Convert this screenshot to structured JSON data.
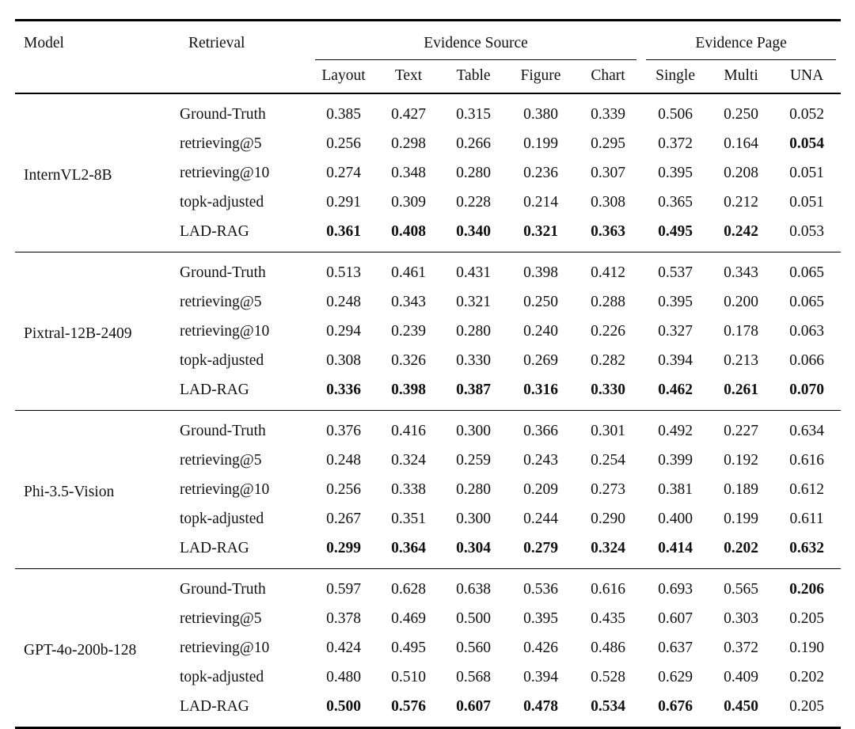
{
  "table": {
    "header": {
      "model_label": "Model",
      "retrieval_label": "Retrieval",
      "group_source_label": "Evidence Source",
      "group_page_label": "Evidence Page",
      "subcolumns": [
        "Layout",
        "Text",
        "Table",
        "Figure",
        "Chart",
        "Single",
        "Multi",
        "UNA"
      ]
    },
    "groups": [
      {
        "model": "InternVL2-8B",
        "rows": [
          {
            "retrieval": "Ground-Truth",
            "values": [
              "0.385",
              "0.427",
              "0.315",
              "0.380",
              "0.339",
              "0.506",
              "0.250",
              "0.052"
            ],
            "bold": [
              false,
              false,
              false,
              false,
              false,
              false,
              false,
              false
            ]
          },
          {
            "retrieval": "retrieving@5",
            "values": [
              "0.256",
              "0.298",
              "0.266",
              "0.199",
              "0.295",
              "0.372",
              "0.164",
              "0.054"
            ],
            "bold": [
              false,
              false,
              false,
              false,
              false,
              false,
              false,
              true
            ]
          },
          {
            "retrieval": "retrieving@10",
            "values": [
              "0.274",
              "0.348",
              "0.280",
              "0.236",
              "0.307",
              "0.395",
              "0.208",
              "0.051"
            ],
            "bold": [
              false,
              false,
              false,
              false,
              false,
              false,
              false,
              false
            ]
          },
          {
            "retrieval": "topk-adjusted",
            "values": [
              "0.291",
              "0.309",
              "0.228",
              "0.214",
              "0.308",
              "0.365",
              "0.212",
              "0.051"
            ],
            "bold": [
              false,
              false,
              false,
              false,
              false,
              false,
              false,
              false
            ]
          },
          {
            "retrieval": "LAD-RAG",
            "values": [
              "0.361",
              "0.408",
              "0.340",
              "0.321",
              "0.363",
              "0.495",
              "0.242",
              "0.053"
            ],
            "bold": [
              true,
              true,
              true,
              true,
              true,
              true,
              true,
              false
            ]
          }
        ]
      },
      {
        "model": "Pixtral-12B-2409",
        "rows": [
          {
            "retrieval": "Ground-Truth",
            "values": [
              "0.513",
              "0.461",
              "0.431",
              "0.398",
              "0.412",
              "0.537",
              "0.343",
              "0.065"
            ],
            "bold": [
              false,
              false,
              false,
              false,
              false,
              false,
              false,
              false
            ]
          },
          {
            "retrieval": "retrieving@5",
            "values": [
              "0.248",
              "0.343",
              "0.321",
              "0.250",
              "0.288",
              "0.395",
              "0.200",
              "0.065"
            ],
            "bold": [
              false,
              false,
              false,
              false,
              false,
              false,
              false,
              false
            ]
          },
          {
            "retrieval": "retrieving@10",
            "values": [
              "0.294",
              "0.239",
              "0.280",
              "0.240",
              "0.226",
              "0.327",
              "0.178",
              "0.063"
            ],
            "bold": [
              false,
              false,
              false,
              false,
              false,
              false,
              false,
              false
            ]
          },
          {
            "retrieval": "topk-adjusted",
            "values": [
              "0.308",
              "0.326",
              "0.330",
              "0.269",
              "0.282",
              "0.394",
              "0.213",
              "0.066"
            ],
            "bold": [
              false,
              false,
              false,
              false,
              false,
              false,
              false,
              false
            ]
          },
          {
            "retrieval": "LAD-RAG",
            "values": [
              "0.336",
              "0.398",
              "0.387",
              "0.316",
              "0.330",
              "0.462",
              "0.261",
              "0.070"
            ],
            "bold": [
              true,
              true,
              true,
              true,
              true,
              true,
              true,
              true
            ]
          }
        ]
      },
      {
        "model": "Phi-3.5-Vision",
        "rows": [
          {
            "retrieval": "Ground-Truth",
            "values": [
              "0.376",
              "0.416",
              "0.300",
              "0.366",
              "0.301",
              "0.492",
              "0.227",
              "0.634"
            ],
            "bold": [
              false,
              false,
              false,
              false,
              false,
              false,
              false,
              false
            ]
          },
          {
            "retrieval": "retrieving@5",
            "values": [
              "0.248",
              "0.324",
              "0.259",
              "0.243",
              "0.254",
              "0.399",
              "0.192",
              "0.616"
            ],
            "bold": [
              false,
              false,
              false,
              false,
              false,
              false,
              false,
              false
            ]
          },
          {
            "retrieval": "retrieving@10",
            "values": [
              "0.256",
              "0.338",
              "0.280",
              "0.209",
              "0.273",
              "0.381",
              "0.189",
              "0.612"
            ],
            "bold": [
              false,
              false,
              false,
              false,
              false,
              false,
              false,
              false
            ]
          },
          {
            "retrieval": "topk-adjusted",
            "values": [
              "0.267",
              "0.351",
              "0.300",
              "0.244",
              "0.290",
              "0.400",
              "0.199",
              "0.611"
            ],
            "bold": [
              false,
              false,
              false,
              false,
              false,
              false,
              false,
              false
            ]
          },
          {
            "retrieval": "LAD-RAG",
            "values": [
              "0.299",
              "0.364",
              "0.304",
              "0.279",
              "0.324",
              "0.414",
              "0.202",
              "0.632"
            ],
            "bold": [
              true,
              true,
              true,
              true,
              true,
              true,
              true,
              true
            ]
          }
        ]
      },
      {
        "model": "GPT-4o-200b-128",
        "rows": [
          {
            "retrieval": "Ground-Truth",
            "values": [
              "0.597",
              "0.628",
              "0.638",
              "0.536",
              "0.616",
              "0.693",
              "0.565",
              "0.206"
            ],
            "bold": [
              false,
              false,
              false,
              false,
              false,
              false,
              false,
              true
            ]
          },
          {
            "retrieval": "retrieving@5",
            "values": [
              "0.378",
              "0.469",
              "0.500",
              "0.395",
              "0.435",
              "0.607",
              "0.303",
              "0.205"
            ],
            "bold": [
              false,
              false,
              false,
              false,
              false,
              false,
              false,
              false
            ]
          },
          {
            "retrieval": "retrieving@10",
            "values": [
              "0.424",
              "0.495",
              "0.560",
              "0.426",
              "0.486",
              "0.637",
              "0.372",
              "0.190"
            ],
            "bold": [
              false,
              false,
              false,
              false,
              false,
              false,
              false,
              false
            ]
          },
          {
            "retrieval": "topk-adjusted",
            "values": [
              "0.480",
              "0.510",
              "0.568",
              "0.394",
              "0.528",
              "0.629",
              "0.409",
              "0.202"
            ],
            "bold": [
              false,
              false,
              false,
              false,
              false,
              false,
              false,
              false
            ]
          },
          {
            "retrieval": "LAD-RAG",
            "values": [
              "0.500",
              "0.576",
              "0.607",
              "0.478",
              "0.534",
              "0.676",
              "0.450",
              "0.205"
            ],
            "bold": [
              true,
              true,
              true,
              true,
              true,
              true,
              true,
              false
            ]
          }
        ]
      }
    ]
  }
}
